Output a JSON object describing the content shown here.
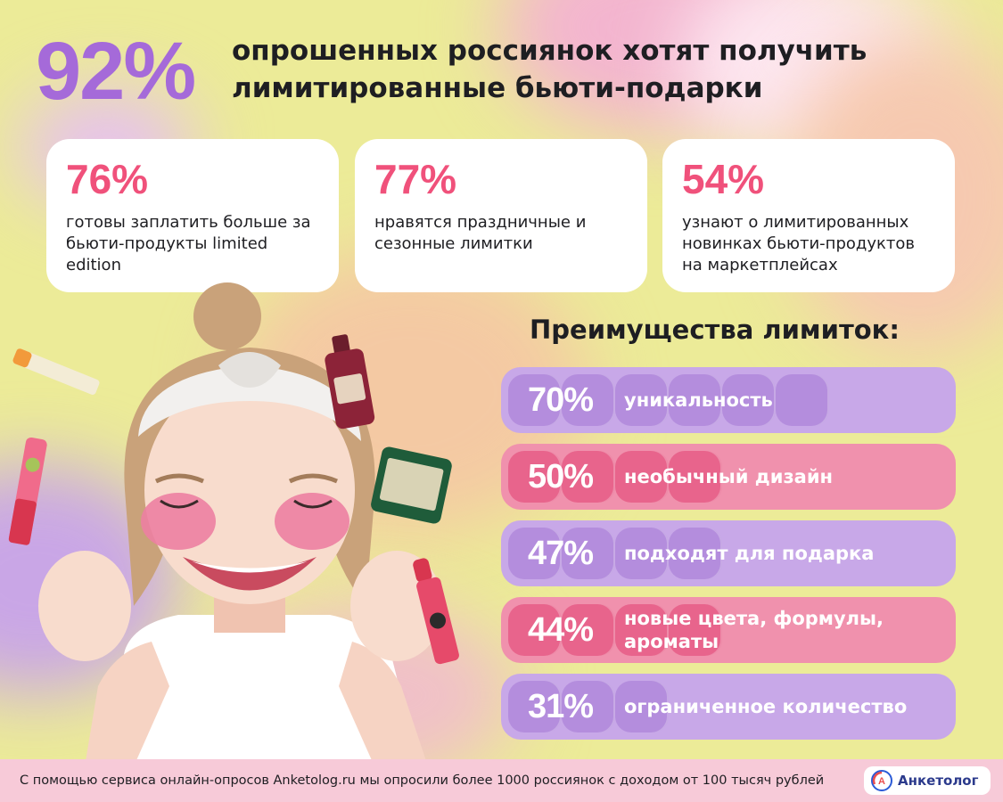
{
  "headline": {
    "big_percent": "92%",
    "title": "опрошенных россиянок хотят получить лимитированные бьюти-подарки"
  },
  "cards": [
    {
      "percent": "76%",
      "text": "готовы заплатить больше за бьюти-продукты limited edition"
    },
    {
      "percent": "77%",
      "text": "нравятся праздничные и сезонные лимитки"
    },
    {
      "percent": "54%",
      "text": "узнают о лимитированных новинках бьюти-продуктов на маркетплейсах"
    }
  ],
  "chart_data": {
    "type": "bar",
    "title": "Преимущества лимиток:",
    "categories": [
      "уникальность",
      "необычный дизайн",
      "подходят для подарка",
      "новые цвета, формулы, ароматы",
      "ограниченное количество"
    ],
    "values": [
      70,
      50,
      47,
      44,
      31
    ],
    "labels": [
      "70%",
      "50%",
      "47%",
      "44%",
      "31%"
    ],
    "ylim": [
      0,
      100
    ],
    "colors": [
      "#c8a8e8",
      "#f091ad",
      "#c8a8e8",
      "#f091ad",
      "#c8a8e8"
    ],
    "fill_colors": [
      "#b48ddd",
      "#e8648c",
      "#b48ddd",
      "#e8648c",
      "#b48ddd"
    ]
  },
  "footer": {
    "text": "С помощью сервиса онлайн-опросов Anketolog.ru мы опросили более 1000 россиянок с доходом от 100 тысяч рублей",
    "logo_text": "Анкетолог",
    "logo_icon": "anketolog-logo-icon"
  },
  "colors": {
    "background": "#eceb98",
    "accent_purple": "#a56ad9",
    "accent_pink": "#f0517b",
    "footer_bg": "#f7cad8"
  }
}
